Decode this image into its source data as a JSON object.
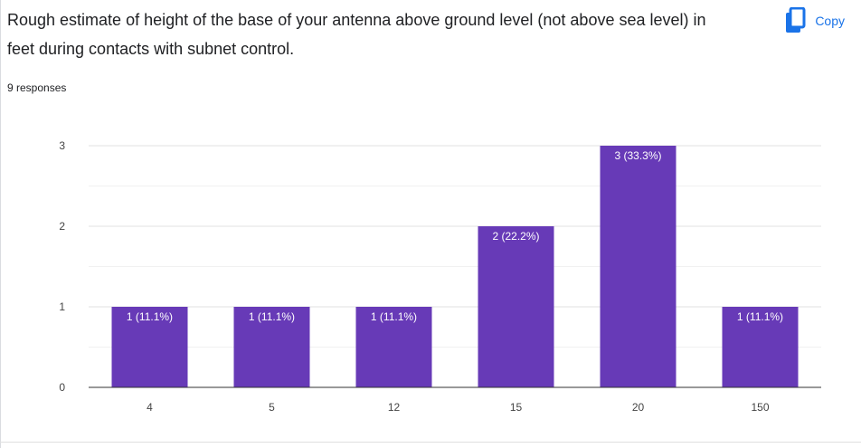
{
  "question": {
    "title": "Rough estimate of height of the base of your antenna above ground level (not above sea level) in feet during contacts with subnet control.",
    "responses": "9 responses"
  },
  "copy_button": {
    "label": "Copy",
    "icon": "copy-icon"
  },
  "colors": {
    "bar": "#673ab7",
    "accent": "#1a73e8",
    "grid": "#e0e0e0",
    "axis": "#333333"
  },
  "chart_data": {
    "type": "bar",
    "categories": [
      "4",
      "5",
      "12",
      "15",
      "20",
      "150"
    ],
    "values": [
      1,
      1,
      1,
      2,
      3,
      1
    ],
    "labels": [
      "1 (11.1%)",
      "1 (11.1%)",
      "1 (11.1%)",
      "2 (22.2%)",
      "3 (33.3%)",
      "1 (11.1%)"
    ],
    "yticks": [
      "0",
      "1",
      "2",
      "3"
    ],
    "ylim": [
      0,
      3
    ],
    "grid": true,
    "title": "",
    "xlabel": "",
    "ylabel": ""
  }
}
